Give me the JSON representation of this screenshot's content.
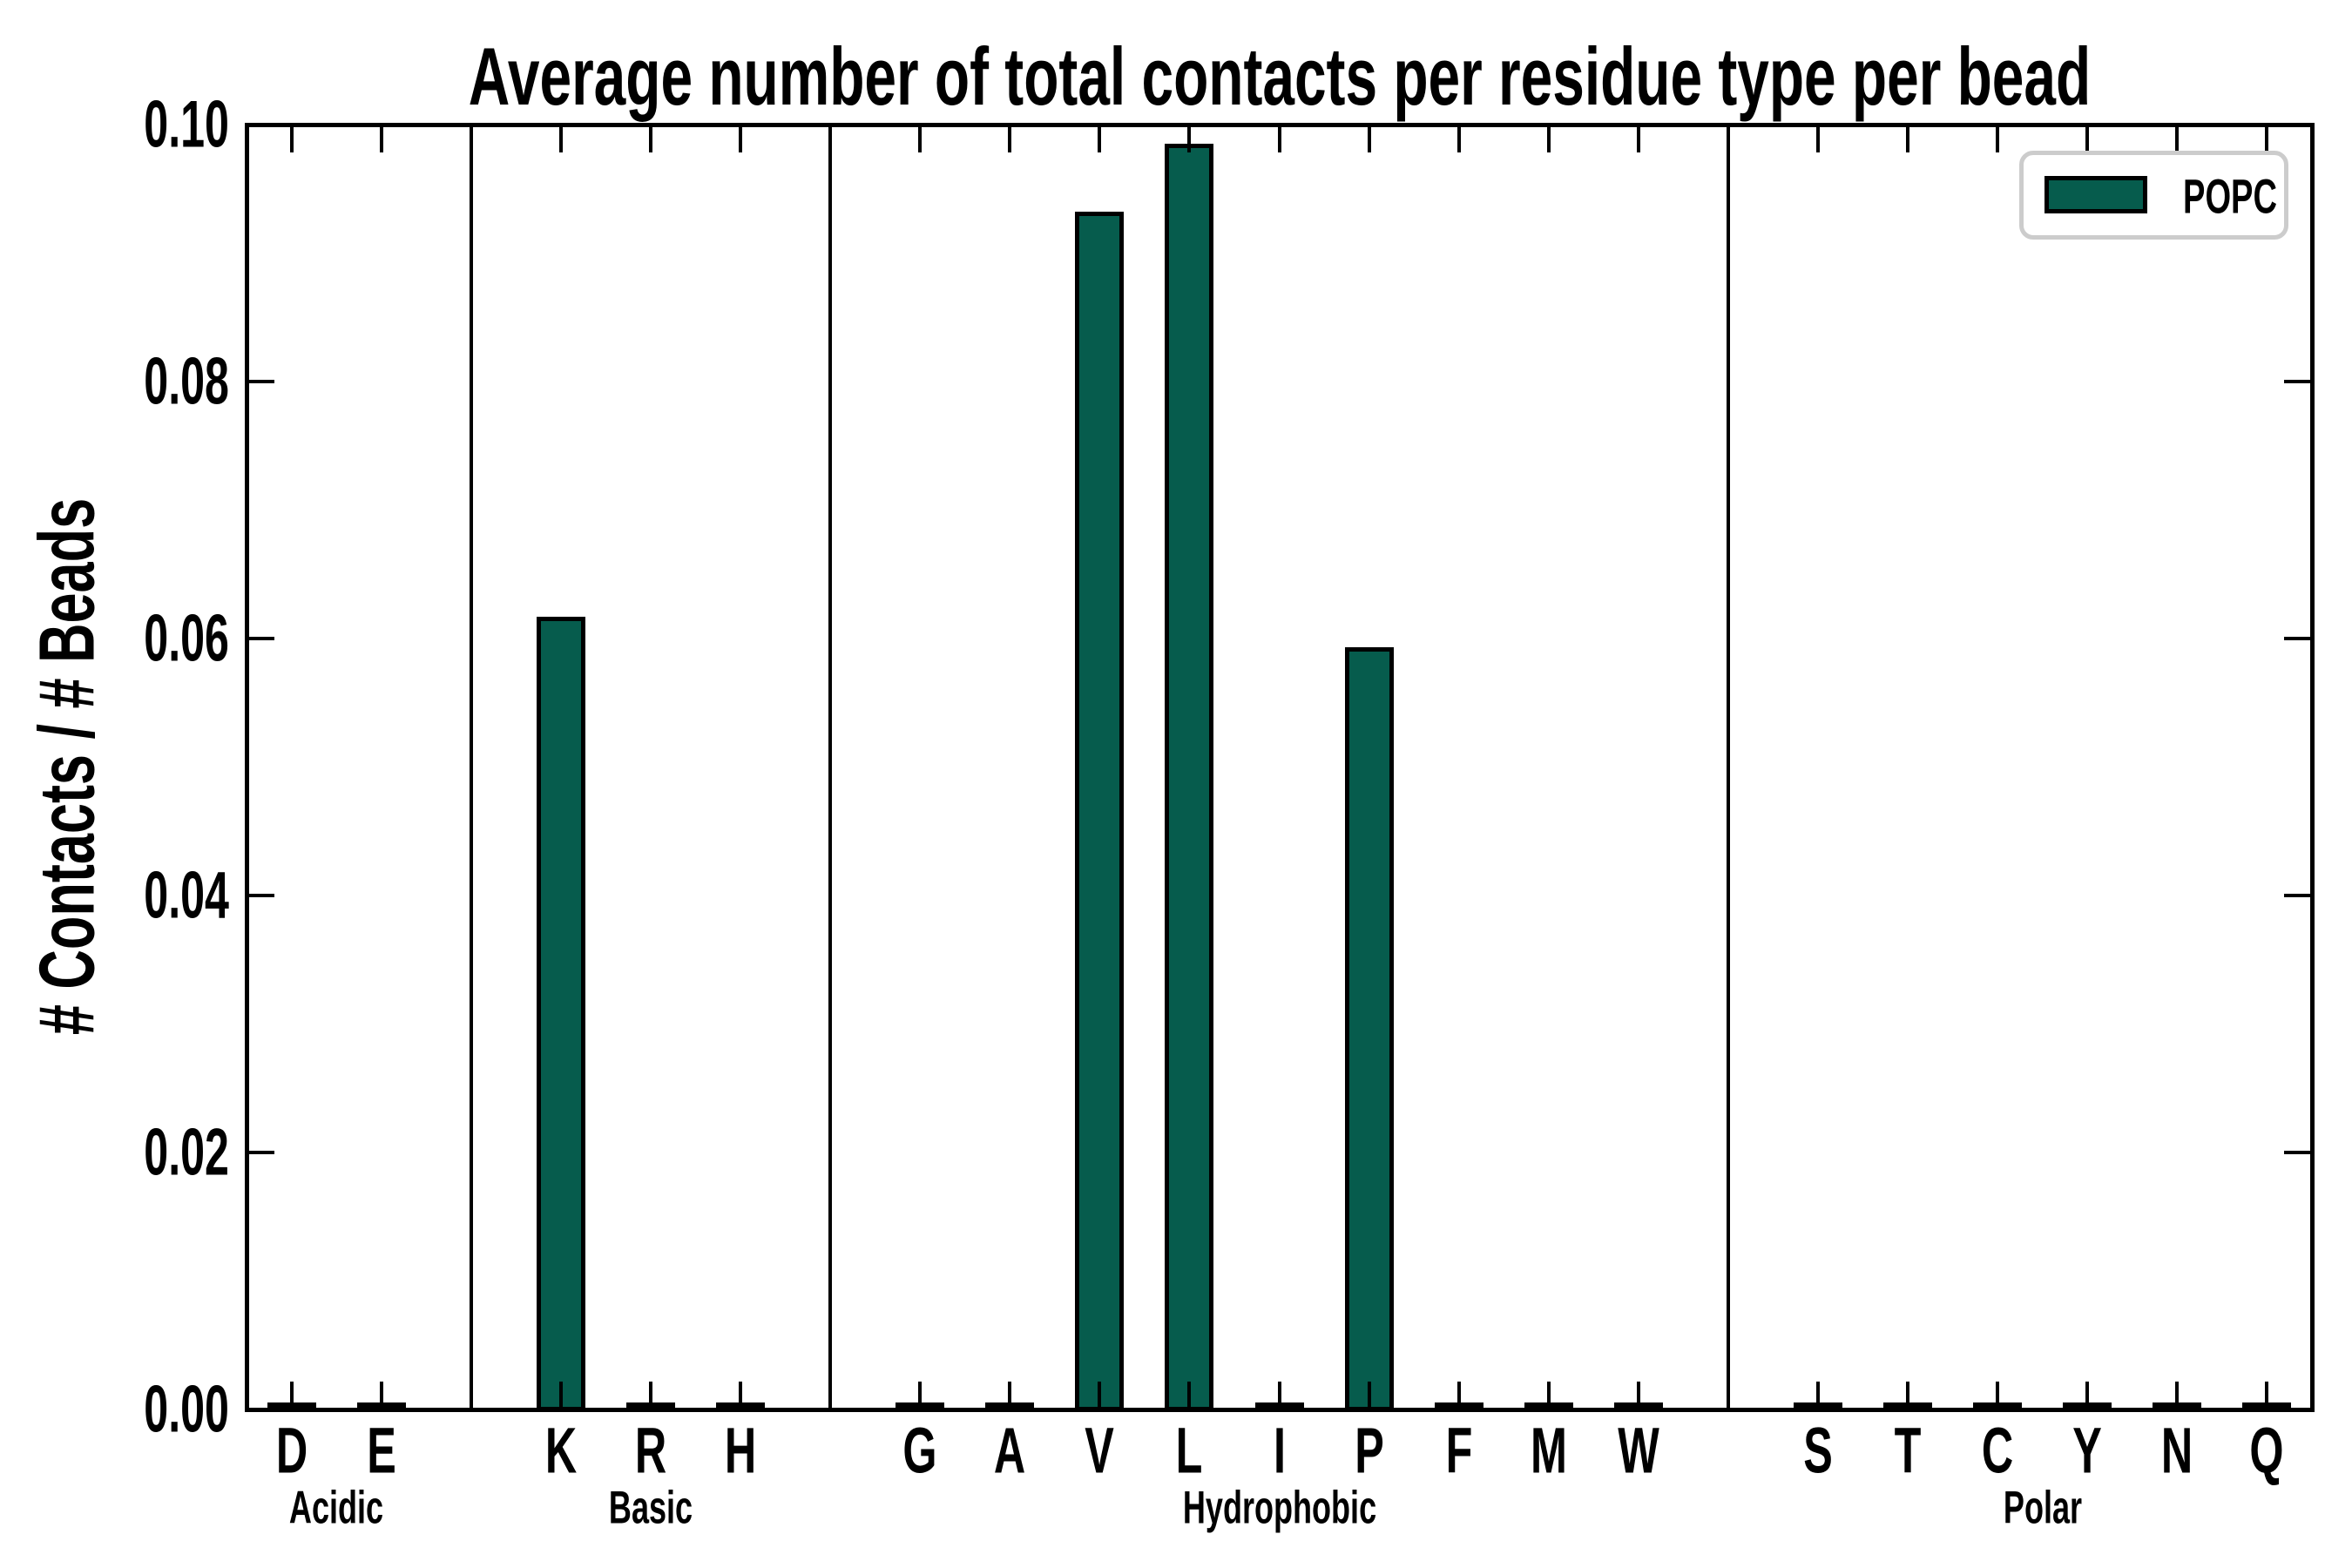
{
  "chart_data": {
    "type": "bar",
    "title": "Average number of total contacts per residue type per bead",
    "ylabel": "# Contacts / # Beads",
    "xlabel": "",
    "ylim": [
      0.0,
      0.1
    ],
    "y_ticks": [
      {
        "value": 0.0,
        "label": "0.00"
      },
      {
        "value": 0.02,
        "label": "0.02"
      },
      {
        "value": 0.04,
        "label": "0.04"
      },
      {
        "value": 0.06,
        "label": "0.06"
      },
      {
        "value": 0.08,
        "label": "0.08"
      },
      {
        "value": 0.1,
        "label": "0.10"
      }
    ],
    "n_slots": 23,
    "bars": [
      {
        "label": "D",
        "slot": 0,
        "group": "Acidic",
        "value": 0.0003
      },
      {
        "label": "E",
        "slot": 1,
        "group": "Acidic",
        "value": 0.0003
      },
      {
        "label": "K",
        "slot": 3,
        "group": "Basic",
        "value": 0.0617
      },
      {
        "label": "R",
        "slot": 4,
        "group": "Basic",
        "value": 0.0003
      },
      {
        "label": "H",
        "slot": 5,
        "group": "Basic",
        "value": 0.0003
      },
      {
        "label": "G",
        "slot": 7,
        "group": "Hydrophobic",
        "value": 0.0003
      },
      {
        "label": "A",
        "slot": 8,
        "group": "Hydrophobic",
        "value": 0.0003
      },
      {
        "label": "V",
        "slot": 9,
        "group": "Hydrophobic",
        "value": 0.0932
      },
      {
        "label": "L",
        "slot": 10,
        "group": "Hydrophobic",
        "value": 0.0985
      },
      {
        "label": "I",
        "slot": 11,
        "group": "Hydrophobic",
        "value": 0.0003
      },
      {
        "label": "P",
        "slot": 12,
        "group": "Hydrophobic",
        "value": 0.0593
      },
      {
        "label": "F",
        "slot": 13,
        "group": "Hydrophobic",
        "value": 0.0003
      },
      {
        "label": "M",
        "slot": 14,
        "group": "Hydrophobic",
        "value": 0.0003
      },
      {
        "label": "W",
        "slot": 15,
        "group": "Hydrophobic",
        "value": 0.0003
      },
      {
        "label": "S",
        "slot": 17,
        "group": "Polar",
        "value": 0.0003
      },
      {
        "label": "T",
        "slot": 18,
        "group": "Polar",
        "value": 0.0003
      },
      {
        "label": "C",
        "slot": 19,
        "group": "Polar",
        "value": 0.0003
      },
      {
        "label": "Y",
        "slot": 20,
        "group": "Polar",
        "value": 0.0003
      },
      {
        "label": "N",
        "slot": 21,
        "group": "Polar",
        "value": 0.0003
      },
      {
        "label": "Q",
        "slot": 22,
        "group": "Polar",
        "value": 0.0003
      }
    ],
    "group_dividers_slots": [
      2,
      6,
      16
    ],
    "group_labels": [
      {
        "label": "Acidic",
        "center_slot": 0.5
      },
      {
        "label": "Basic",
        "center_slot": 4
      },
      {
        "label": "Hydrophobic",
        "center_slot": 11
      },
      {
        "label": "Polar",
        "center_slot": 19.5
      }
    ],
    "legend": {
      "label": "POPC",
      "position": "upper right"
    },
    "colors": {
      "bar_fill": "#065C4D",
      "bar_edge": "#000000",
      "axis": "#000000",
      "legend_border": "#CCCCCC",
      "background": "#FFFFFF"
    },
    "grid": false,
    "tick_direction": "in"
  }
}
